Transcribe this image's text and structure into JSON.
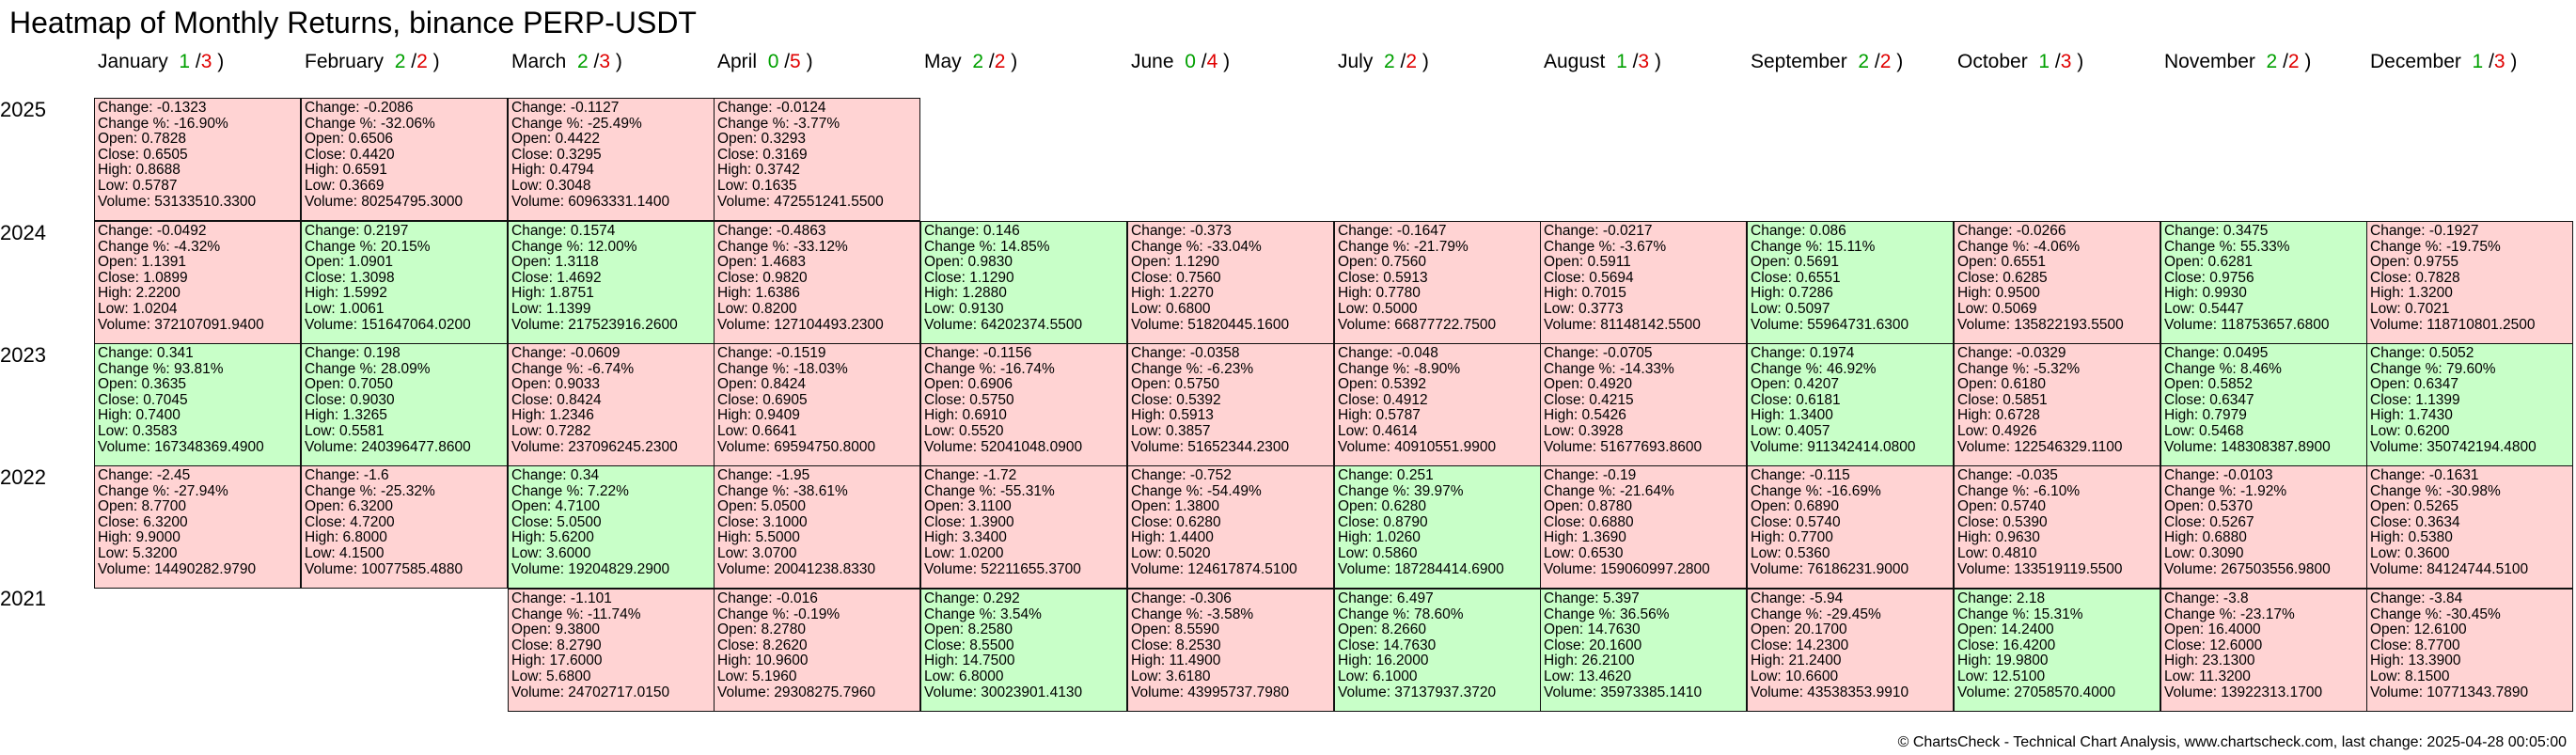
{
  "title": "Heatmap of Monthly Returns, binance PERP-USDT",
  "footer": "© ChartsCheck - Technical Chart Analysis, www.chartscheck.com, last change: 2025-04-28 00:05:00",
  "colors": {
    "positive": "#c8ffc8",
    "negative": "#ffd3d3",
    "up_count": "#00a000",
    "down_count": "#e00000"
  },
  "field_labels": {
    "change": "Change: ",
    "change_pct": "Change %: ",
    "open": "Open: ",
    "close": "Close: ",
    "high": "High: ",
    "low": "Low: ",
    "volume": "Volume: "
  },
  "chart_data": {
    "type": "heatmap",
    "title": "Heatmap of Monthly Returns, binance PERP-USDT",
    "x_axis": "month",
    "y_axis": "year",
    "months": [
      {
        "name": "January",
        "up": 1,
        "down": 3
      },
      {
        "name": "February",
        "up": 2,
        "down": 2
      },
      {
        "name": "March",
        "up": 2,
        "down": 3
      },
      {
        "name": "April",
        "up": 0,
        "down": 5
      },
      {
        "name": "May",
        "up": 2,
        "down": 2
      },
      {
        "name": "June",
        "up": 0,
        "down": 4
      },
      {
        "name": "July",
        "up": 2,
        "down": 2
      },
      {
        "name": "August",
        "up": 1,
        "down": 3
      },
      {
        "name": "September",
        "up": 2,
        "down": 2
      },
      {
        "name": "October",
        "up": 1,
        "down": 3
      },
      {
        "name": "November",
        "up": 2,
        "down": 2
      },
      {
        "name": "December",
        "up": 1,
        "down": 3
      }
    ],
    "years": [
      {
        "year": "2025",
        "cells": [
          {
            "month": "January",
            "change": "-0.1323",
            "change_pct": "-16.90%",
            "open": "0.7828",
            "close": "0.6505",
            "high": "0.8688",
            "low": "0.5787",
            "volume": "53133510.3300"
          },
          {
            "month": "February",
            "change": "-0.2086",
            "change_pct": "-32.06%",
            "open": "0.6506",
            "close": "0.4420",
            "high": "0.6591",
            "low": "0.3669",
            "volume": "80254795.3000"
          },
          {
            "month": "March",
            "change": "-0.1127",
            "change_pct": "-25.49%",
            "open": "0.4422",
            "close": "0.3295",
            "high": "0.4794",
            "low": "0.3048",
            "volume": "60963331.1400"
          },
          {
            "month": "April",
            "change": "-0.0124",
            "change_pct": "-3.77%",
            "open": "0.3293",
            "close": "0.3169",
            "high": "0.3742",
            "low": "0.1635",
            "volume": "472551241.5500"
          }
        ]
      },
      {
        "year": "2024",
        "cells": [
          {
            "month": "January",
            "change": "-0.0492",
            "change_pct": "-4.32%",
            "open": "1.1391",
            "close": "1.0899",
            "high": "2.2200",
            "low": "1.0204",
            "volume": "372107091.9400"
          },
          {
            "month": "February",
            "change": "0.2197",
            "change_pct": "20.15%",
            "open": "1.0901",
            "close": "1.3098",
            "high": "1.5992",
            "low": "1.0061",
            "volume": "151647064.0200"
          },
          {
            "month": "March",
            "change": "0.1574",
            "change_pct": "12.00%",
            "open": "1.3118",
            "close": "1.4692",
            "high": "1.8751",
            "low": "1.1399",
            "volume": "217523916.2600"
          },
          {
            "month": "April",
            "change": "-0.4863",
            "change_pct": "-33.12%",
            "open": "1.4683",
            "close": "0.9820",
            "high": "1.6386",
            "low": "0.8200",
            "volume": "127104493.2300"
          },
          {
            "month": "May",
            "change": "0.146",
            "change_pct": "14.85%",
            "open": "0.9830",
            "close": "1.1290",
            "high": "1.2880",
            "low": "0.9130",
            "volume": "64202374.5500"
          },
          {
            "month": "June",
            "change": "-0.373",
            "change_pct": "-33.04%",
            "open": "1.1290",
            "close": "0.7560",
            "high": "1.2270",
            "low": "0.6800",
            "volume": "51820445.1600"
          },
          {
            "month": "July",
            "change": "-0.1647",
            "change_pct": "-21.79%",
            "open": "0.7560",
            "close": "0.5913",
            "high": "0.7780",
            "low": "0.5000",
            "volume": "66877722.7500"
          },
          {
            "month": "August",
            "change": "-0.0217",
            "change_pct": "-3.67%",
            "open": "0.5911",
            "close": "0.5694",
            "high": "0.7015",
            "low": "0.3773",
            "volume": "81148142.5500"
          },
          {
            "month": "September",
            "change": "0.086",
            "change_pct": "15.11%",
            "open": "0.5691",
            "close": "0.6551",
            "high": "0.7286",
            "low": "0.5097",
            "volume": "55964731.6300"
          },
          {
            "month": "October",
            "change": "-0.0266",
            "change_pct": "-4.06%",
            "open": "0.6551",
            "close": "0.6285",
            "high": "0.9500",
            "low": "0.5069",
            "volume": "135822193.5500"
          },
          {
            "month": "November",
            "change": "0.3475",
            "change_pct": "55.33%",
            "open": "0.6281",
            "close": "0.9756",
            "high": "0.9930",
            "low": "0.5447",
            "volume": "118753657.6800"
          },
          {
            "month": "December",
            "change": "-0.1927",
            "change_pct": "-19.75%",
            "open": "0.9755",
            "close": "0.7828",
            "high": "1.3200",
            "low": "0.7021",
            "volume": "118710801.2500"
          }
        ]
      },
      {
        "year": "2023",
        "cells": [
          {
            "month": "January",
            "change": "0.341",
            "change_pct": "93.81%",
            "open": "0.3635",
            "close": "0.7045",
            "high": "0.7400",
            "low": "0.3583",
            "volume": "167348369.4900"
          },
          {
            "month": "February",
            "change": "0.198",
            "change_pct": "28.09%",
            "open": "0.7050",
            "close": "0.9030",
            "high": "1.3265",
            "low": "0.5581",
            "volume": "240396477.8600"
          },
          {
            "month": "March",
            "change": "-0.0609",
            "change_pct": "-6.74%",
            "open": "0.9033",
            "close": "0.8424",
            "high": "1.2346",
            "low": "0.7282",
            "volume": "237096245.2300"
          },
          {
            "month": "April",
            "change": "-0.1519",
            "change_pct": "-18.03%",
            "open": "0.8424",
            "close": "0.6905",
            "high": "0.9409",
            "low": "0.6641",
            "volume": "69594750.8000"
          },
          {
            "month": "May",
            "change": "-0.1156",
            "change_pct": "-16.74%",
            "open": "0.6906",
            "close": "0.5750",
            "high": "0.6910",
            "low": "0.5520",
            "volume": "52041048.0900"
          },
          {
            "month": "June",
            "change": "-0.0358",
            "change_pct": "-6.23%",
            "open": "0.5750",
            "close": "0.5392",
            "high": "0.5913",
            "low": "0.3857",
            "volume": "51652344.2300"
          },
          {
            "month": "July",
            "change": "-0.048",
            "change_pct": "-8.90%",
            "open": "0.5392",
            "close": "0.4912",
            "high": "0.5787",
            "low": "0.4614",
            "volume": "40910551.9900"
          },
          {
            "month": "August",
            "change": "-0.0705",
            "change_pct": "-14.33%",
            "open": "0.4920",
            "close": "0.4215",
            "high": "0.5426",
            "low": "0.3928",
            "volume": "51677693.8600"
          },
          {
            "month": "September",
            "change": "0.1974",
            "change_pct": "46.92%",
            "open": "0.4207",
            "close": "0.6181",
            "high": "1.3400",
            "low": "0.4057",
            "volume": "911342414.0800"
          },
          {
            "month": "October",
            "change": "-0.0329",
            "change_pct": "-5.32%",
            "open": "0.6180",
            "close": "0.5851",
            "high": "0.6728",
            "low": "0.4926",
            "volume": "122546329.1100"
          },
          {
            "month": "November",
            "change": "0.0495",
            "change_pct": "8.46%",
            "open": "0.5852",
            "close": "0.6347",
            "high": "0.7979",
            "low": "0.5468",
            "volume": "148308387.8900"
          },
          {
            "month": "December",
            "change": "0.5052",
            "change_pct": "79.60%",
            "open": "0.6347",
            "close": "1.1399",
            "high": "1.7430",
            "low": "0.6200",
            "volume": "350742194.4800"
          }
        ]
      },
      {
        "year": "2022",
        "cells": [
          {
            "month": "January",
            "change": "-2.45",
            "change_pct": "-27.94%",
            "open": "8.7700",
            "close": "6.3200",
            "high": "9.9000",
            "low": "5.3200",
            "volume": "14490282.9790"
          },
          {
            "month": "February",
            "change": "-1.6",
            "change_pct": "-25.32%",
            "open": "6.3200",
            "close": "4.7200",
            "high": "6.8000",
            "low": "4.1500",
            "volume": "10077585.4880"
          },
          {
            "month": "March",
            "change": "0.34",
            "change_pct": "7.22%",
            "open": "4.7100",
            "close": "5.0500",
            "high": "5.6200",
            "low": "3.6000",
            "volume": "19204829.2900"
          },
          {
            "month": "April",
            "change": "-1.95",
            "change_pct": "-38.61%",
            "open": "5.0500",
            "close": "3.1000",
            "high": "5.5000",
            "low": "3.0700",
            "volume": "20041238.8330"
          },
          {
            "month": "May",
            "change": "-1.72",
            "change_pct": "-55.31%",
            "open": "3.1100",
            "close": "1.3900",
            "high": "3.3400",
            "low": "1.0200",
            "volume": "52211655.3700"
          },
          {
            "month": "June",
            "change": "-0.752",
            "change_pct": "-54.49%",
            "open": "1.3800",
            "close": "0.6280",
            "high": "1.4400",
            "low": "0.5020",
            "volume": "124617874.5100"
          },
          {
            "month": "July",
            "change": "0.251",
            "change_pct": "39.97%",
            "open": "0.6280",
            "close": "0.8790",
            "high": "1.0260",
            "low": "0.5860",
            "volume": "187284414.6900"
          },
          {
            "month": "August",
            "change": "-0.19",
            "change_pct": "-21.64%",
            "open": "0.8780",
            "close": "0.6880",
            "high": "1.3690",
            "low": "0.6530",
            "volume": "159060997.2800"
          },
          {
            "month": "September",
            "change": "-0.115",
            "change_pct": "-16.69%",
            "open": "0.6890",
            "close": "0.5740",
            "high": "0.7700",
            "low": "0.5360",
            "volume": "76186231.9000"
          },
          {
            "month": "October",
            "change": "-0.035",
            "change_pct": "-6.10%",
            "open": "0.5740",
            "close": "0.5390",
            "high": "0.9630",
            "low": "0.4810",
            "volume": "133519119.5500"
          },
          {
            "month": "November",
            "change": "-0.0103",
            "change_pct": "-1.92%",
            "open": "0.5370",
            "close": "0.5267",
            "high": "0.6880",
            "low": "0.3090",
            "volume": "267503556.9800"
          },
          {
            "month": "December",
            "change": "-0.1631",
            "change_pct": "-30.98%",
            "open": "0.5265",
            "close": "0.3634",
            "high": "0.5380",
            "low": "0.3600",
            "volume": "84124744.5100"
          }
        ]
      },
      {
        "year": "2021",
        "cells": [
          {
            "month": "March",
            "change": "-1.101",
            "change_pct": "-11.74%",
            "open": "9.3800",
            "close": "8.2790",
            "high": "17.6000",
            "low": "5.6800",
            "volume": "24702717.0150"
          },
          {
            "month": "April",
            "change": "-0.016",
            "change_pct": "-0.19%",
            "open": "8.2780",
            "close": "8.2620",
            "high": "10.9600",
            "low": "5.1960",
            "volume": "29308275.7960"
          },
          {
            "month": "May",
            "change": "0.292",
            "change_pct": "3.54%",
            "open": "8.2580",
            "close": "8.5500",
            "high": "14.7500",
            "low": "6.8000",
            "volume": "30023901.4130"
          },
          {
            "month": "June",
            "change": "-0.306",
            "change_pct": "-3.58%",
            "open": "8.5590",
            "close": "8.2530",
            "high": "11.4900",
            "low": "3.6180",
            "volume": "43995737.7980"
          },
          {
            "month": "July",
            "change": "6.497",
            "change_pct": "78.60%",
            "open": "8.2660",
            "close": "14.7630",
            "high": "16.2000",
            "low": "6.1000",
            "volume": "37137937.3720"
          },
          {
            "month": "August",
            "change": "5.397",
            "change_pct": "36.56%",
            "open": "14.7630",
            "close": "20.1600",
            "high": "26.2100",
            "low": "13.4620",
            "volume": "35973385.1410"
          },
          {
            "month": "September",
            "change": "-5.94",
            "change_pct": "-29.45%",
            "open": "20.1700",
            "close": "14.2300",
            "high": "21.2400",
            "low": "10.6600",
            "volume": "43538353.9910"
          },
          {
            "month": "October",
            "change": "2.18",
            "change_pct": "15.31%",
            "open": "14.2400",
            "close": "16.4200",
            "high": "19.9800",
            "low": "12.5100",
            "volume": "27058570.4000"
          },
          {
            "month": "November",
            "change": "-3.8",
            "change_pct": "-23.17%",
            "open": "16.4000",
            "close": "12.6000",
            "high": "23.1300",
            "low": "11.3200",
            "volume": "13922313.1700"
          },
          {
            "month": "December",
            "change": "-3.84",
            "change_pct": "-30.45%",
            "open": "12.6100",
            "close": "8.7700",
            "high": "13.3900",
            "low": "8.1500",
            "volume": "10771343.7890"
          }
        ]
      }
    ]
  }
}
